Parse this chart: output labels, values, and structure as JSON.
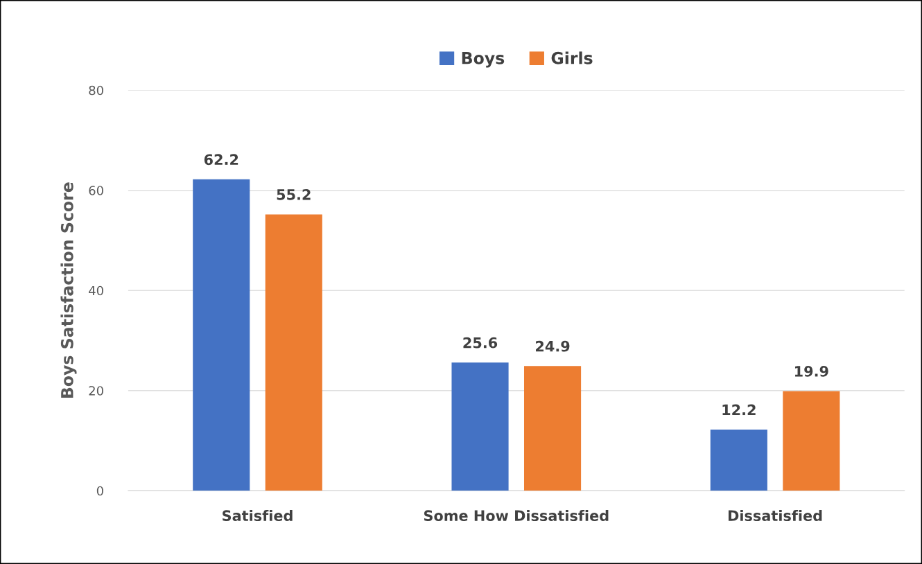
{
  "chart_data": {
    "type": "bar",
    "ylabel": "Boys Satisfaction Score",
    "categories": [
      "Satisfied",
      "Some How Dissatisfied",
      "Dissatisfied"
    ],
    "series": [
      {
        "name": "Boys",
        "color": "#4472c4",
        "values": [
          62.2,
          25.6,
          12.2
        ]
      },
      {
        "name": "Girls",
        "color": "#ed7d31",
        "values": [
          55.2,
          24.9,
          19.9
        ]
      }
    ],
    "ylim": [
      0,
      80
    ],
    "yticks": [
      0,
      20,
      40,
      60,
      80
    ],
    "grid": "y",
    "legend": "top",
    "data_labels": true
  }
}
